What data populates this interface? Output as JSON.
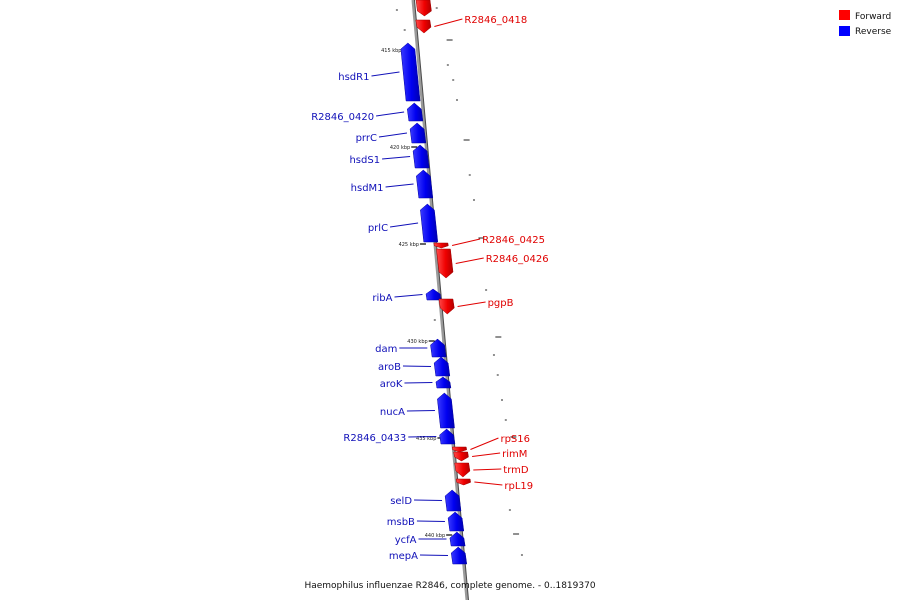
{
  "legend": {
    "forward_label": "Forward",
    "reverse_label": "Reverse",
    "forward_color": "#ff0000",
    "reverse_color": "#0000ff"
  },
  "caption": "Haemophilus influenzae R2846, complete genome. - 0..1819370",
  "ticks": [
    "415 kbp",
    "420 kbp",
    "425 kbp",
    "430 kbp",
    "435 kbp",
    "440 kbp"
  ],
  "genes": [
    {
      "name": "R2846_0418",
      "strand": "forward"
    },
    {
      "name": "hsdR1",
      "strand": "reverse"
    },
    {
      "name": "R2846_0420",
      "strand": "reverse"
    },
    {
      "name": "prrC",
      "strand": "reverse"
    },
    {
      "name": "hsdS1",
      "strand": "reverse"
    },
    {
      "name": "hsdM1",
      "strand": "reverse"
    },
    {
      "name": "prlC",
      "strand": "reverse"
    },
    {
      "name": "R2846_0425",
      "strand": "forward"
    },
    {
      "name": "R2846_0426",
      "strand": "forward"
    },
    {
      "name": "ribA",
      "strand": "reverse"
    },
    {
      "name": "pgpB",
      "strand": "forward"
    },
    {
      "name": "dam",
      "strand": "reverse"
    },
    {
      "name": "aroB",
      "strand": "reverse"
    },
    {
      "name": "aroK",
      "strand": "reverse"
    },
    {
      "name": "nucA",
      "strand": "reverse"
    },
    {
      "name": "R2846_0433",
      "strand": "reverse"
    },
    {
      "name": "rpS16",
      "strand": "forward"
    },
    {
      "name": "rimM",
      "strand": "forward"
    },
    {
      "name": "trmD",
      "strand": "forward"
    },
    {
      "name": "rpL19",
      "strand": "forward"
    },
    {
      "name": "selD",
      "strand": "reverse"
    },
    {
      "name": "msbB",
      "strand": "reverse"
    },
    {
      "name": "ycfA",
      "strand": "reverse"
    },
    {
      "name": "mepA",
      "strand": "reverse"
    }
  ]
}
